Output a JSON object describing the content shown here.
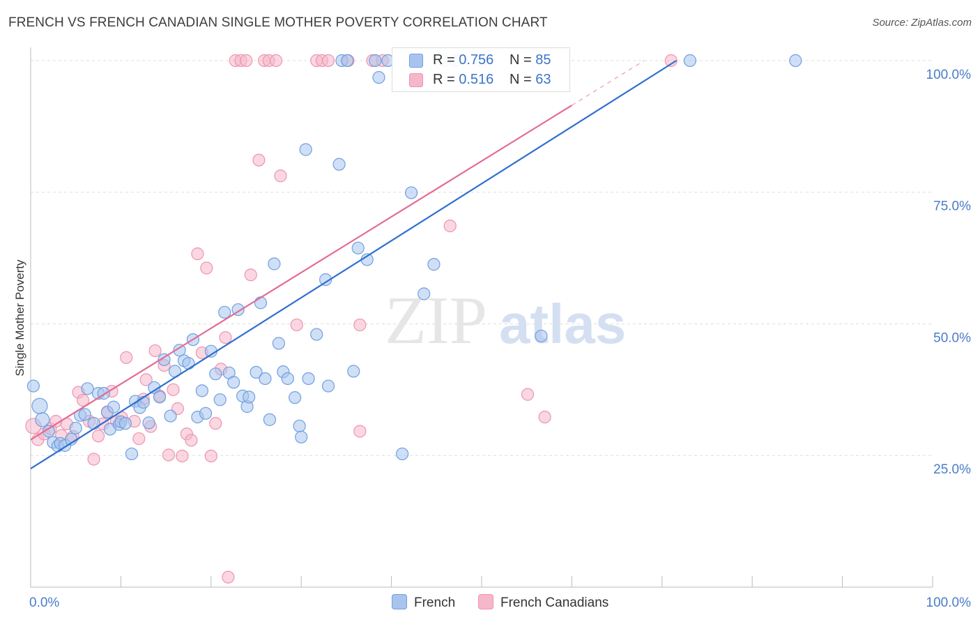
{
  "header": {
    "title": "FRENCH VS FRENCH CANADIAN SINGLE MOTHER POVERTY CORRELATION CHART",
    "source": "Source: ZipAtlas.com"
  },
  "watermark": {
    "zip": "ZIP",
    "atlas": "atlas"
  },
  "legend_top": {
    "rows": [
      {
        "r_label": "R =",
        "r_value": "0.756",
        "n_label": "N =",
        "n_value": "85"
      },
      {
        "r_label": "R =",
        "r_value": "0.516",
        "n_label": "N =",
        "n_value": "63"
      }
    ]
  },
  "legend_bottom": {
    "french": "French",
    "french_canadians": "French Canadians"
  },
  "colors": {
    "french_fill": "#a8c4ee",
    "french_stroke": "#6f9fe0",
    "french_line": "#2f6fcf",
    "fc_fill": "#f6b7c9",
    "fc_stroke": "#ee94b0",
    "fc_line": "#e36b93",
    "tick_text": "#4a7cc7",
    "grid": "#dddddd"
  },
  "chart_data": {
    "type": "scatter",
    "title": "FRENCH VS FRENCH CANADIAN SINGLE MOTHER POVERTY CORRELATION CHART",
    "xlabel": "",
    "ylabel": "Single Mother Poverty",
    "xlim": [
      0,
      100
    ],
    "ylim": [
      0,
      102.5
    ],
    "x_tick_labels": [
      "0.0%",
      "100.0%"
    ],
    "y_ticks": [
      25,
      50,
      75,
      100
    ],
    "y_tick_labels": [
      "25.0%",
      "50.0%",
      "75.0%",
      "100.0%"
    ],
    "grid": true,
    "legend_position": "top-center",
    "series": [
      {
        "name": "French",
        "r": 0.756,
        "n": 85,
        "trend": {
          "x": [
            0,
            71.6
          ],
          "y": [
            22.5,
            100
          ]
        },
        "points": [
          [
            0.3,
            38.2
          ],
          [
            1,
            34.4
          ],
          [
            1.3,
            31.8
          ],
          [
            2,
            29.6
          ],
          [
            2.5,
            27.5
          ],
          [
            3,
            26.8
          ],
          [
            3.3,
            27.3
          ],
          [
            3.8,
            26.9
          ],
          [
            4.5,
            28.1
          ],
          [
            5,
            30.2
          ],
          [
            5.5,
            32.6
          ],
          [
            6,
            32.8
          ],
          [
            6.3,
            37.7
          ],
          [
            7,
            31.1
          ],
          [
            7.5,
            36.8
          ],
          [
            8.1,
            36.8
          ],
          [
            8.5,
            33.2
          ],
          [
            8.8,
            30
          ],
          [
            9.2,
            34.2
          ],
          [
            9.8,
            30.9
          ],
          [
            10,
            31.4
          ],
          [
            10.5,
            31.1
          ],
          [
            11.2,
            25.3
          ],
          [
            11.6,
            35.3
          ],
          [
            12.1,
            34.1
          ],
          [
            12.5,
            35.1
          ],
          [
            13.1,
            31.2
          ],
          [
            13.7,
            37.9
          ],
          [
            14.3,
            36.1
          ],
          [
            14.8,
            43.2
          ],
          [
            15.5,
            32.5
          ],
          [
            16,
            41
          ],
          [
            16.5,
            45
          ],
          [
            17,
            43
          ],
          [
            17.5,
            42.5
          ],
          [
            18,
            47
          ],
          [
            18.5,
            32.3
          ],
          [
            19,
            37.3
          ],
          [
            19.4,
            33
          ],
          [
            20,
            44.8
          ],
          [
            20.5,
            40.5
          ],
          [
            21,
            35.6
          ],
          [
            21.5,
            52.2
          ],
          [
            22,
            40.7
          ],
          [
            22.5,
            38.9
          ],
          [
            23,
            52.7
          ],
          [
            23.5,
            36.3
          ],
          [
            24,
            34.3
          ],
          [
            24.2,
            36.1
          ],
          [
            25,
            40.8
          ],
          [
            25.5,
            54
          ],
          [
            26,
            39.6
          ],
          [
            26.5,
            31.8
          ],
          [
            27,
            61.4
          ],
          [
            27.5,
            46.3
          ],
          [
            28,
            40.9
          ],
          [
            28.5,
            39.6
          ],
          [
            29.3,
            36
          ],
          [
            29.8,
            30.6
          ],
          [
            30,
            28.5
          ],
          [
            30.5,
            83.1
          ],
          [
            30.8,
            39.6
          ],
          [
            31.7,
            48
          ],
          [
            32.7,
            58.4
          ],
          [
            33,
            38.2
          ],
          [
            34.2,
            80.3
          ],
          [
            34.5,
            100
          ],
          [
            35.1,
            100
          ],
          [
            35.8,
            41
          ],
          [
            36.3,
            64.4
          ],
          [
            37.3,
            62.2
          ],
          [
            38.2,
            100
          ],
          [
            38.6,
            96.8
          ],
          [
            39.6,
            100
          ],
          [
            41.2,
            25.3
          ],
          [
            42.2,
            74.9
          ],
          [
            42.8,
            100
          ],
          [
            43.6,
            55.7
          ],
          [
            44.7,
            61.3
          ],
          [
            45.8,
            100
          ],
          [
            47.1,
            100
          ],
          [
            50,
            100
          ],
          [
            56.6,
            47.7
          ],
          [
            73.1,
            100
          ],
          [
            84.8,
            100
          ]
        ]
      },
      {
        "name": "French Canadians",
        "r": 0.516,
        "n": 63,
        "trend": {
          "x": [
            0,
            60
          ],
          "y": [
            28,
            91.5
          ]
        },
        "points": [
          [
            0.3,
            30.6
          ],
          [
            0.8,
            28
          ],
          [
            1.5,
            29.1
          ],
          [
            2.2,
            30.1
          ],
          [
            2.8,
            31.5
          ],
          [
            3.4,
            28.8
          ],
          [
            4,
            31
          ],
          [
            4.7,
            28.6
          ],
          [
            5.3,
            37
          ],
          [
            5.8,
            35.5
          ],
          [
            6.5,
            31.5
          ],
          [
            7,
            24.3
          ],
          [
            7.5,
            28.7
          ],
          [
            8,
            31
          ],
          [
            8.5,
            33.3
          ],
          [
            9,
            37.2
          ],
          [
            9.5,
            31.5
          ],
          [
            10.1,
            32.2
          ],
          [
            10.6,
            43.6
          ],
          [
            11.5,
            31.5
          ],
          [
            12,
            28.2
          ],
          [
            12.5,
            35.7
          ],
          [
            12.8,
            39.4
          ],
          [
            13.3,
            30.5
          ],
          [
            13.8,
            44.9
          ],
          [
            14.3,
            36.3
          ],
          [
            14.8,
            42.1
          ],
          [
            15.3,
            25.1
          ],
          [
            15.8,
            37.5
          ],
          [
            16.3,
            33.9
          ],
          [
            16.8,
            24.9
          ],
          [
            17.3,
            29.1
          ],
          [
            17.8,
            27.9
          ],
          [
            18.5,
            63.3
          ],
          [
            19,
            44.5
          ],
          [
            19.5,
            60.6
          ],
          [
            20,
            24.9
          ],
          [
            20.5,
            31.1
          ],
          [
            21.1,
            41.4
          ],
          [
            21.6,
            47.4
          ],
          [
            21.9,
            1.9
          ],
          [
            22.7,
            100
          ],
          [
            23.3,
            100
          ],
          [
            23.9,
            100
          ],
          [
            24.4,
            59.3
          ],
          [
            25.3,
            81.1
          ],
          [
            25.9,
            100
          ],
          [
            26.4,
            100
          ],
          [
            27.2,
            100
          ],
          [
            27.7,
            78.1
          ],
          [
            29.5,
            49.8
          ],
          [
            31.7,
            100
          ],
          [
            32.3,
            100
          ],
          [
            33,
            100
          ],
          [
            35.2,
            100
          ],
          [
            36.5,
            49.8
          ],
          [
            36.5,
            29.6
          ],
          [
            37.9,
            100
          ],
          [
            39,
            100
          ],
          [
            46.5,
            68.6
          ],
          [
            55.1,
            36.6
          ],
          [
            57,
            32.3
          ],
          [
            71,
            100
          ]
        ]
      }
    ]
  }
}
